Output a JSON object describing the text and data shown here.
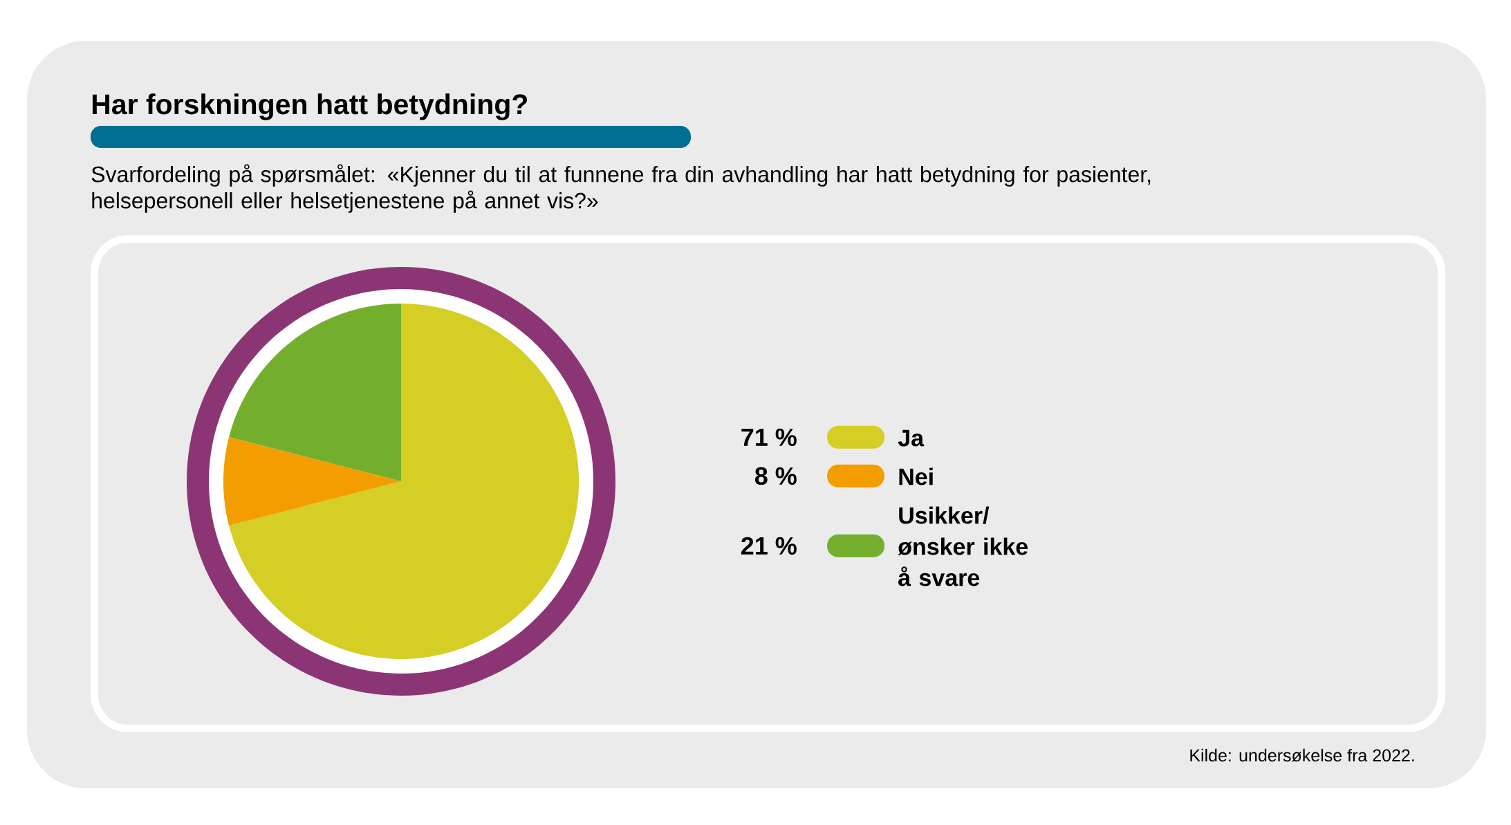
{
  "chart_data": {
    "type": "pie",
    "title": "Har forskningen hatt betydning?",
    "subtitle": "Svarfordeling på spørsmålet: «Kjenner du til at funnene fra din avhandling har hatt betydning for pasienter, helsepersonell eller helsetjenestene på annet vis?»",
    "categories": [
      "Ja",
      "Nei",
      "Usikker/ønsker ikke å svare"
    ],
    "values": [
      71,
      8,
      21
    ],
    "colors": [
      "#d4ce25",
      "#f49d00",
      "#73af2d"
    ],
    "value_labels": [
      "71 %",
      "8 %",
      "21 %"
    ],
    "legend": "right",
    "annotations": [
      "Kilde: undersøkelse fra 2022."
    ]
  }
}
